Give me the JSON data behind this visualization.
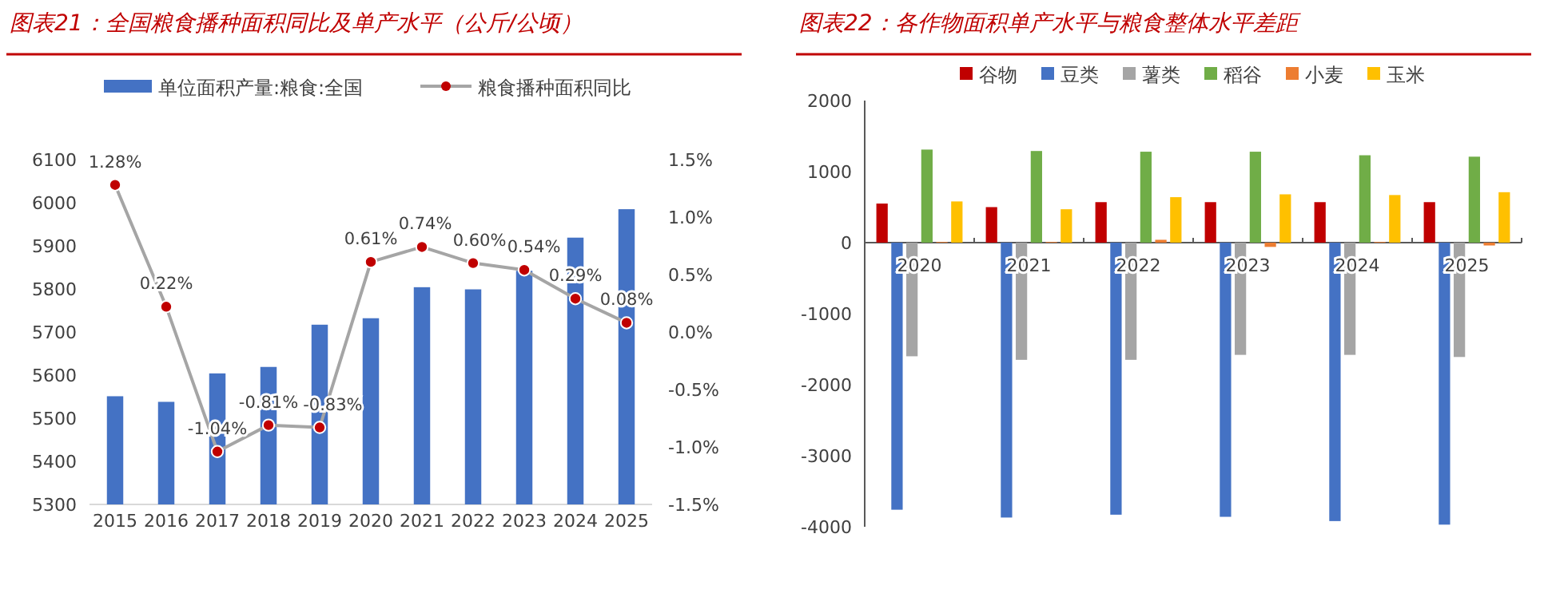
{
  "chart_data": [
    {
      "type": "bar",
      "title": "图表21：全国粮食播种面积同比及单产水平（公斤/公顷）",
      "categories": [
        "2015",
        "2016",
        "2017",
        "2018",
        "2019",
        "2020",
        "2021",
        "2022",
        "2023",
        "2024",
        "2025"
      ],
      "series": [
        {
          "name": "单位面积产量:粮食:全国",
          "type": "bar",
          "color": "#4472c4",
          "values": [
            5551,
            5538,
            5604,
            5619,
            5717,
            5732,
            5804,
            5799,
            5842,
            5919,
            5985
          ]
        },
        {
          "name": "粮食播种面积同比",
          "type": "line",
          "axis": "y2",
          "color": "#a5a5a5",
          "marker": "circle",
          "values": [
            1.28,
            0.22,
            -1.04,
            -0.81,
            -0.83,
            0.61,
            0.74,
            0.6,
            0.54,
            0.29,
            0.08
          ],
          "value_labels": [
            "1.28%",
            "0.22%",
            "-1.04%",
            "-0.81%",
            "-0.83%",
            "0.61%",
            "0.74%",
            "0.60%",
            "0.54%",
            "0.29%",
            "0.08%"
          ]
        }
      ],
      "ylim": [
        5300,
        6100
      ],
      "yticks": [
        5300,
        5400,
        5500,
        5600,
        5700,
        5800,
        5900,
        6000,
        6100
      ],
      "y2lim": [
        -1.5,
        1.5
      ],
      "y2ticks": [
        {
          "value": -1.5,
          "label": "-1.5%"
        },
        {
          "value": -1.0,
          "label": "-1.0%"
        },
        {
          "value": -0.5,
          "label": "-0.5%"
        },
        {
          "value": 0,
          "label": "0.0%"
        },
        {
          "value": 0.5,
          "label": "0.5%"
        },
        {
          "value": 1.0,
          "label": "1.0%"
        },
        {
          "value": 1.5,
          "label": "1.5%"
        }
      ],
      "grid": false,
      "legend": "top"
    },
    {
      "type": "bar",
      "title": "图表22：各作物面积单产水平与粮食整体水平差距",
      "categories": [
        "2020",
        "2021",
        "2022",
        "2023",
        "2024",
        "2025"
      ],
      "series": [
        {
          "name": "谷物",
          "color": "#c00000",
          "values": [
            550,
            500,
            570,
            570,
            570,
            570
          ]
        },
        {
          "name": "豆类",
          "color": "#4472c4",
          "values": [
            -3760,
            -3870,
            -3830,
            -3860,
            -3920,
            -3970
          ]
        },
        {
          "name": "薯类",
          "color": "#a5a5a5",
          "values": [
            -1600,
            -1650,
            -1650,
            -1580,
            -1580,
            -1610
          ]
        },
        {
          "name": "稻谷",
          "color": "#70ad47",
          "values": [
            1310,
            1290,
            1280,
            1280,
            1230,
            1210
          ]
        },
        {
          "name": "小麦",
          "color": "#ed7d31",
          "values": [
            10,
            10,
            40,
            -60,
            10,
            -40
          ]
        },
        {
          "name": "玉米",
          "color": "#ffc000",
          "values": [
            580,
            470,
            640,
            680,
            670,
            710
          ]
        }
      ],
      "ylim": [
        -4000,
        2000
      ],
      "yticks": [
        -4000,
        -3000,
        -2000,
        -1000,
        0,
        1000,
        2000
      ],
      "grid": false,
      "legend": "top"
    }
  ]
}
